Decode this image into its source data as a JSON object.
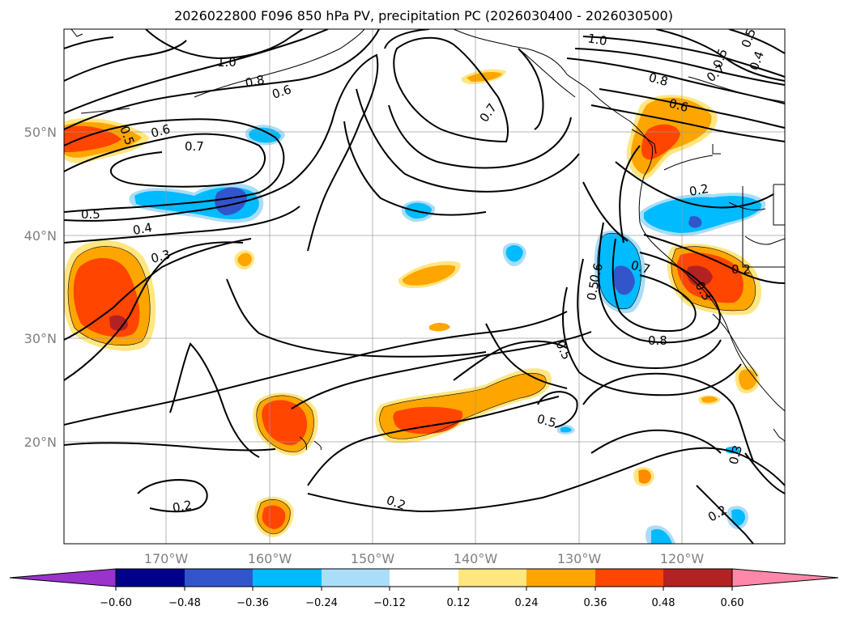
{
  "title": "2026022800 F096 850 hPa PV, precipitation PC (2026030400 - 2026030500)",
  "lat_labels": [
    "50°N",
    "40°N",
    "30°N",
    "20°N"
  ],
  "lon_labels": [
    "170°W",
    "160°W",
    "150°W",
    "140°W",
    "130°W",
    "120°W"
  ],
  "colorbar": {
    "ticks": [
      "−0.60",
      "−0.48",
      "−0.36",
      "−0.24",
      "−0.12",
      "0.12",
      "0.24",
      "0.36",
      "0.48",
      "0.60"
    ],
    "colors": [
      "#9933cc",
      "#00008b",
      "#3355cc",
      "#00bbff",
      "#aaddf7",
      "#ffffff",
      "#ffe680",
      "#ffa500",
      "#ff4500",
      "#b22222",
      "#ff88aa"
    ]
  },
  "contour_labels": {
    "c01": "1.0",
    "c02": "0.8",
    "c03": "0.6",
    "c04": "0.5",
    "c05": "0.6",
    "c06": "0.7",
    "c07": "0.5",
    "c08": "0.4",
    "c09": "0.3",
    "c10": "0.2",
    "c11": "0.2",
    "c12": "0.5",
    "c13": "0.7",
    "c14": "1.0",
    "c15": "0.8",
    "c16": "0.6",
    "c17": "0.2",
    "c18": "0.7",
    "c19": "0.8",
    "c20": "0.6",
    "c21": "0.5",
    "c22": "0.5",
    "c23": "0.3",
    "c24": "0.2",
    "c25": "0.3",
    "c26": "0.2",
    "c27": "0.5",
    "c28": "0.7",
    "c29": "0.4",
    "c30": "0.5"
  }
}
